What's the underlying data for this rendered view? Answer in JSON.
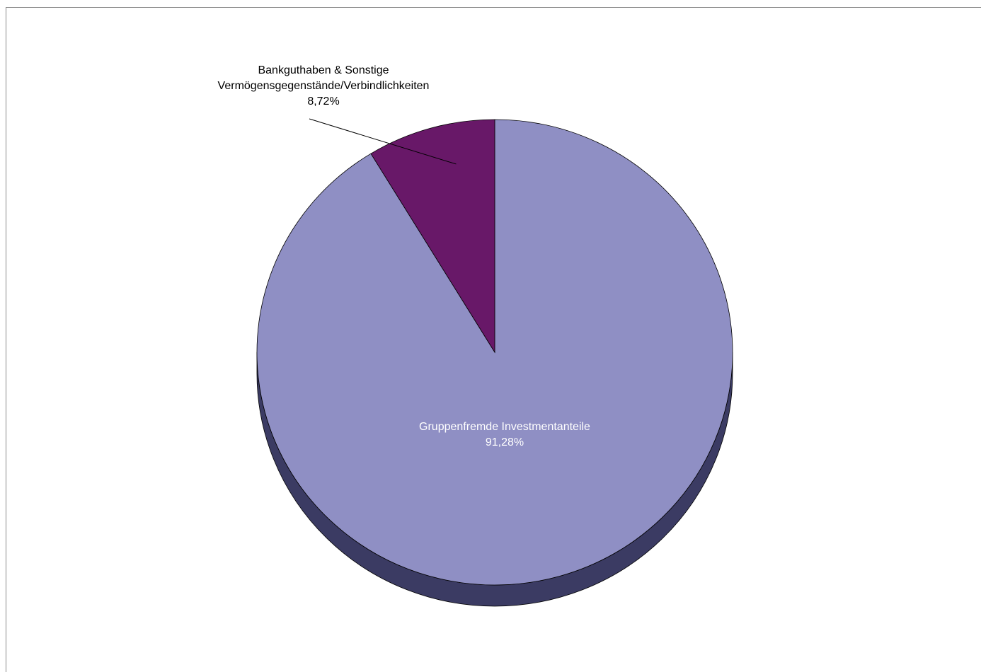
{
  "chart_data": {
    "type": "pie",
    "title": "",
    "slices": [
      {
        "label_lines": [
          "Gruppenfremde Investmentanteile"
        ],
        "value_label": "91,28%",
        "value": 91.28,
        "color": "#8f8fc4",
        "side_color": "#3b3b63",
        "label_color": "#ffffff"
      },
      {
        "label_lines": [
          "Bankguthaben & Sonstige",
          "Vermögensgegenstände/Verbindlichkeiten"
        ],
        "value_label": "8,72%",
        "value": 8.72,
        "color": "#681868",
        "side_color": "#3a0a3a",
        "label_color": "#000000"
      }
    ],
    "legend": "none"
  }
}
